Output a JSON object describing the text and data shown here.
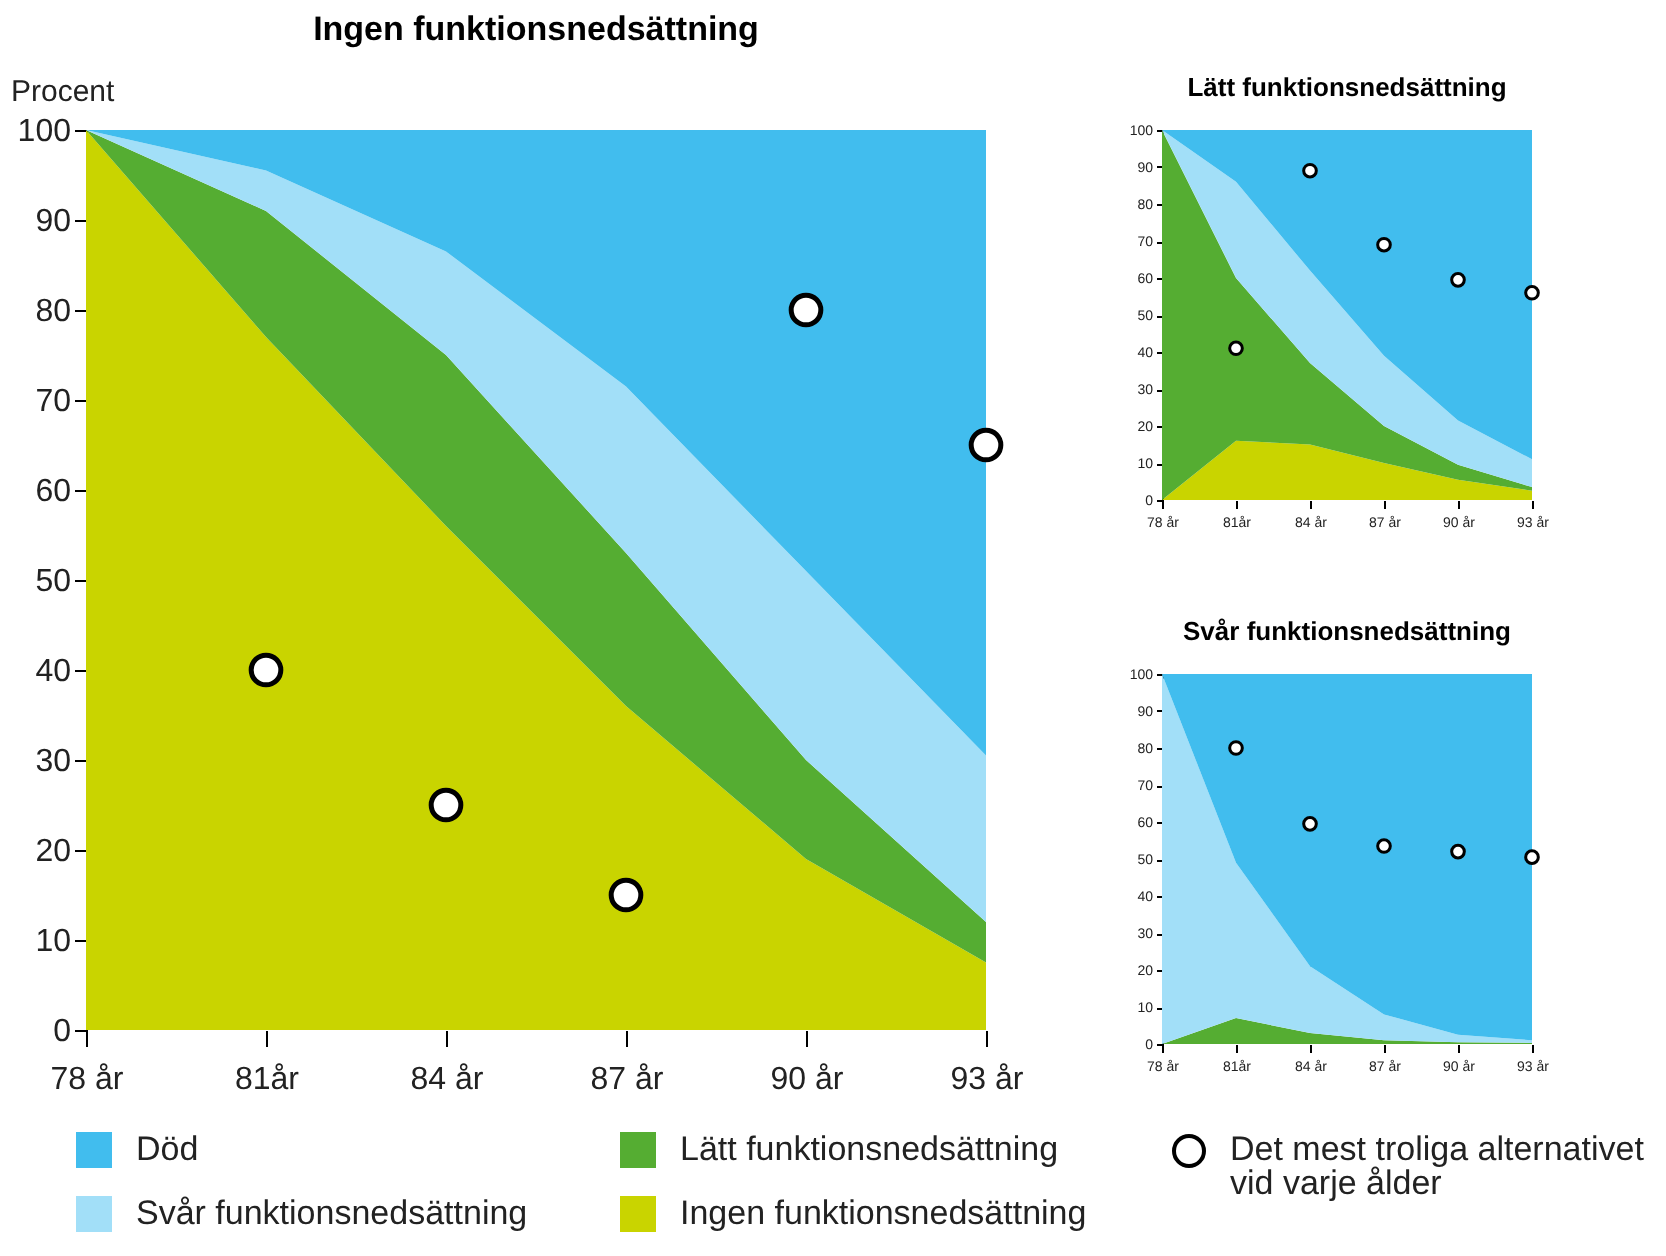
{
  "chart_data": [
    {
      "type": "area",
      "title": "Ingen funktionsnedsättning",
      "ylabel": "Procent",
      "categories": [
        "78 år",
        "81år",
        "84 år",
        "87 år",
        "90 år",
        "93 år"
      ],
      "stacked": true,
      "ylim": [
        0,
        100
      ],
      "yticks": [
        0,
        10,
        20,
        30,
        40,
        50,
        60,
        70,
        80,
        90,
        100
      ],
      "legend": "bottom",
      "series": [
        {
          "name": "Ingen funktionsnedsättning",
          "color": "#c9d400",
          "values": [
            100,
            77,
            56,
            36,
            19,
            7.5
          ]
        },
        {
          "name": "Lätt funktionsnedsättning",
          "color": "#55ad32",
          "values": [
            0,
            14,
            19,
            17,
            11,
            4.5
          ]
        },
        {
          "name": "Svår funktionsnedsättning",
          "color": "#a2dff8",
          "values": [
            0,
            4.5,
            11.5,
            18.5,
            21,
            18.5
          ]
        },
        {
          "name": "Död",
          "color": "#41bdee",
          "values": [
            0,
            4.5,
            13.5,
            28.5,
            49,
            69.5
          ]
        },
        {
          "type": "scatter",
          "marker": "circle",
          "name": "Det mest troliga alternativet vid varje ålder",
          "color": "#ffffff",
          "x": [
            "81år",
            "84 år",
            "87 år",
            "90 år",
            "93 år"
          ],
          "values": [
            40,
            25,
            15,
            80,
            65
          ]
        }
      ]
    },
    {
      "type": "area",
      "title": "Lätt funktionsnedsättning",
      "categories": [
        "78 år",
        "81år",
        "84 år",
        "87 år",
        "90 år",
        "93 år"
      ],
      "stacked": true,
      "ylim": [
        0,
        100
      ],
      "yticks": [
        0,
        10,
        20,
        30,
        40,
        50,
        60,
        70,
        80,
        90,
        100
      ],
      "series": [
        {
          "color": "#c9d400",
          "values": [
            0,
            16,
            15,
            10,
            5.5,
            2.5
          ]
        },
        {
          "color": "#55ad32",
          "values": [
            100,
            44,
            22,
            10,
            4,
            1
          ]
        },
        {
          "color": "#a2dff8",
          "values": [
            0,
            26,
            25,
            19,
            12,
            7.5
          ]
        },
        {
          "color": "#41bdee",
          "values": [
            0,
            14,
            38,
            61,
            78.5,
            89
          ]
        },
        {
          "type": "scatter",
          "marker": "circle",
          "color": "#ffffff",
          "x": [
            "81år",
            "84 år",
            "87 år",
            "90 år",
            "93 år"
          ],
          "values": [
            41,
            89,
            69,
            59.5,
            56
          ]
        }
      ]
    },
    {
      "type": "area",
      "title": "Svår funktionsnedsättning",
      "categories": [
        "78 år",
        "81år",
        "84 år",
        "87 år",
        "90 år",
        "93 år"
      ],
      "stacked": true,
      "ylim": [
        0,
        100
      ],
      "yticks": [
        0,
        10,
        20,
        30,
        40,
        50,
        60,
        70,
        80,
        90,
        100
      ],
      "series": [
        {
          "color": "#55ad32",
          "values": [
            0,
            7,
            3,
            1,
            0.5,
            0.3
          ]
        },
        {
          "color": "#a2dff8",
          "values": [
            100,
            42,
            18,
            7,
            2,
            0.7
          ]
        },
        {
          "color": "#41bdee",
          "values": [
            0,
            51,
            79,
            92,
            97.5,
            99
          ]
        },
        {
          "type": "scatter",
          "marker": "circle",
          "color": "#ffffff",
          "x": [
            "81år",
            "84 år",
            "87 år",
            "90 år",
            "93 år"
          ],
          "values": [
            80,
            59.5,
            53.5,
            52,
            50.5
          ]
        }
      ]
    }
  ]
}
